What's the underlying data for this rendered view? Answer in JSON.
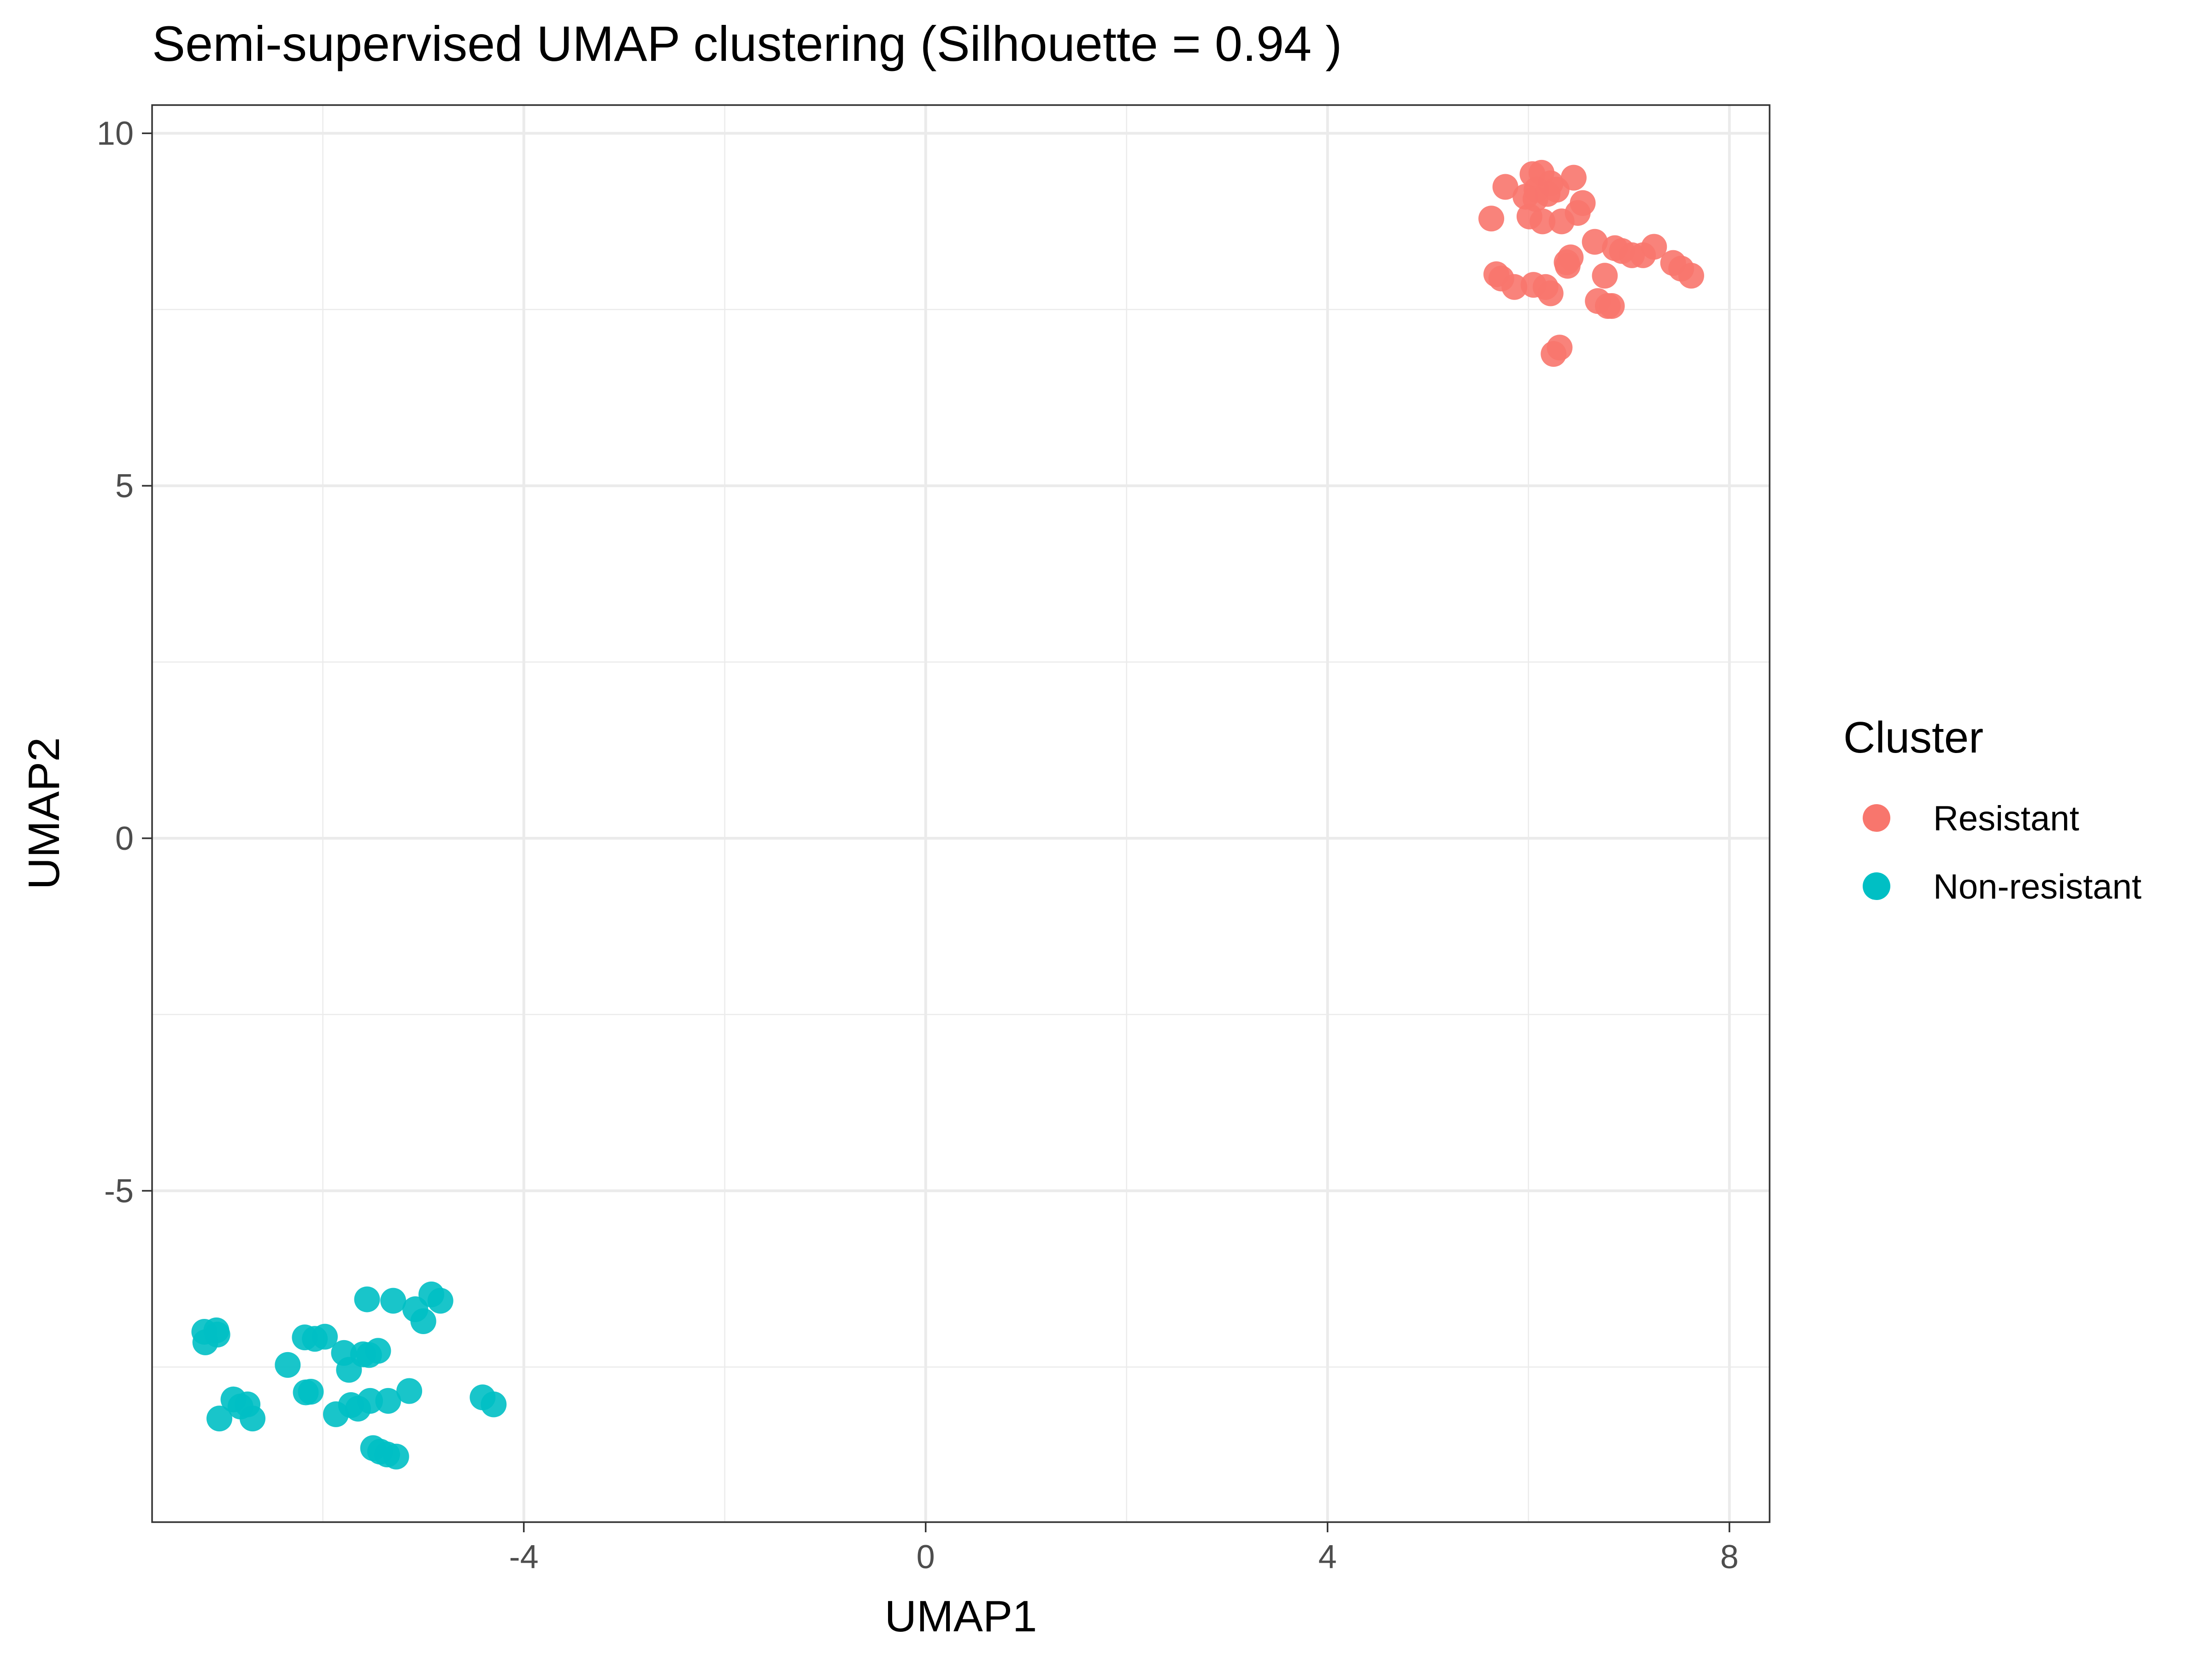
{
  "chart_data": {
    "type": "scatter",
    "title": "Semi-supervised UMAP clustering (Silhouette = 0.94 )",
    "xlabel": "UMAP1",
    "ylabel": "UMAP2",
    "xlim": [
      -7.7,
      8.4
    ],
    "ylim": [
      -9.7,
      10.4
    ],
    "xticks": [
      -4,
      0,
      4,
      8
    ],
    "xtick_labels": [
      "-4",
      "0",
      "4",
      "8"
    ],
    "yticks": [
      -5,
      0,
      5,
      10
    ],
    "ytick_labels": [
      "-5",
      "0",
      "5",
      "10"
    ],
    "x_minor": [
      -6,
      -2,
      2,
      6
    ],
    "y_minor": [
      -7.5,
      -2.5,
      2.5,
      7.5
    ],
    "grid": true,
    "legend": {
      "title": "Cluster",
      "position": "right"
    },
    "series": [
      {
        "name": "Resistant",
        "color": "#F8766D",
        "points": [
          [
            5.63,
            8.79
          ],
          [
            5.68,
            8.0
          ],
          [
            5.73,
            7.94
          ],
          [
            5.77,
            9.24
          ],
          [
            5.86,
            7.82
          ],
          [
            5.97,
            9.1
          ],
          [
            6.01,
            8.82
          ],
          [
            6.04,
            9.42
          ],
          [
            6.05,
            7.85
          ],
          [
            6.07,
            9.07
          ],
          [
            6.08,
            9.2
          ],
          [
            6.13,
            9.44
          ],
          [
            6.14,
            8.75
          ],
          [
            6.17,
            7.82
          ],
          [
            6.19,
            9.14
          ],
          [
            6.22,
            9.29
          ],
          [
            6.25,
            6.87
          ],
          [
            6.28,
            9.2
          ],
          [
            6.31,
            6.96
          ],
          [
            6.33,
            8.75
          ],
          [
            6.38,
            8.17
          ],
          [
            6.39,
            8.12
          ],
          [
            6.42,
            8.24
          ],
          [
            6.45,
            9.37
          ],
          [
            6.49,
            8.87
          ],
          [
            6.54,
            9.01
          ],
          [
            6.66,
            8.46
          ],
          [
            6.69,
            7.62
          ],
          [
            6.76,
            7.98
          ],
          [
            6.79,
            7.55
          ],
          [
            6.83,
            7.55
          ],
          [
            6.86,
            8.37
          ],
          [
            6.93,
            8.33
          ],
          [
            7.03,
            8.27
          ],
          [
            7.14,
            8.27
          ],
          [
            7.25,
            8.39
          ],
          [
            7.44,
            8.16
          ],
          [
            7.52,
            8.08
          ],
          [
            7.62,
            7.98
          ],
          [
            6.22,
            7.73
          ]
        ]
      },
      {
        "name": "Non-resistant",
        "color": "#00BFC4",
        "points": [
          [
            -7.18,
            -7.0
          ],
          [
            -7.17,
            -7.15
          ],
          [
            -7.06,
            -6.98
          ],
          [
            -7.05,
            -7.04
          ],
          [
            -7.03,
            -8.23
          ],
          [
            -6.89,
            -7.96
          ],
          [
            -6.82,
            -8.06
          ],
          [
            -6.75,
            -8.03
          ],
          [
            -6.7,
            -8.23
          ],
          [
            -6.35,
            -7.47
          ],
          [
            -6.18,
            -7.08
          ],
          [
            -6.17,
            -7.86
          ],
          [
            -6.12,
            -7.85
          ],
          [
            -6.08,
            -7.1
          ],
          [
            -5.98,
            -7.07
          ],
          [
            -5.87,
            -8.17
          ],
          [
            -5.79,
            -7.3
          ],
          [
            -5.74,
            -7.54
          ],
          [
            -5.72,
            -8.04
          ],
          [
            -5.65,
            -8.09
          ],
          [
            -5.6,
            -7.32
          ],
          [
            -5.56,
            -6.54
          ],
          [
            -5.54,
            -7.33
          ],
          [
            -5.53,
            -7.98
          ],
          [
            -5.5,
            -8.65
          ],
          [
            -5.45,
            -7.27
          ],
          [
            -5.43,
            -8.7
          ],
          [
            -5.36,
            -8.74
          ],
          [
            -5.35,
            -7.98
          ],
          [
            -5.3,
            -6.56
          ],
          [
            -5.27,
            -8.77
          ],
          [
            -5.14,
            -7.84
          ],
          [
            -5.08,
            -6.68
          ],
          [
            -5.0,
            -6.85
          ],
          [
            -4.92,
            -6.47
          ],
          [
            -4.83,
            -6.56
          ],
          [
            -4.41,
            -7.93
          ],
          [
            -4.3,
            -8.03
          ]
        ]
      }
    ]
  }
}
